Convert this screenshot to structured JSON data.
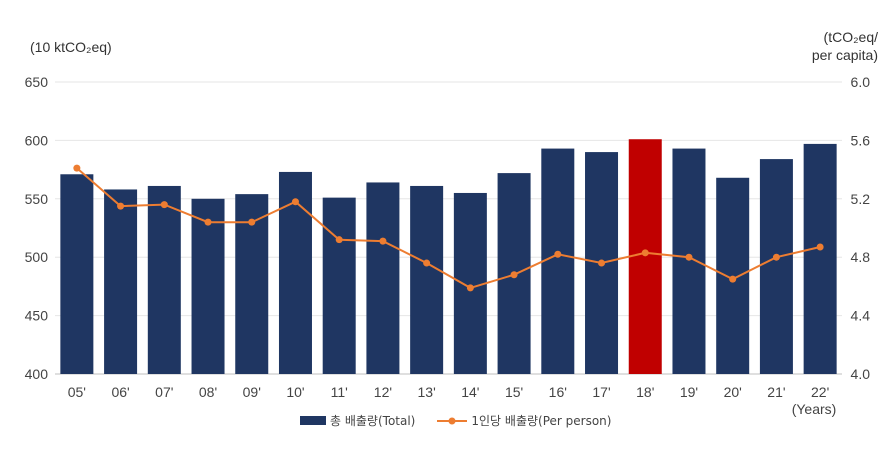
{
  "chart_data": {
    "type": "bar",
    "left_axis_unit": "(10 ktCO₂eq)",
    "right_axis_unit_line1": "(tCO₂eq/",
    "right_axis_unit_line2": "per capita)",
    "x_unit": "(Years)",
    "categories": [
      "05'",
      "06'",
      "07'",
      "08'",
      "09'",
      "10'",
      "11'",
      "12'",
      "13'",
      "14'",
      "15'",
      "16'",
      "17'",
      "18'",
      "19'",
      "20'",
      "21'",
      "22'"
    ],
    "series": [
      {
        "name": "총 배출량(Total)",
        "type": "bar",
        "axis": "left",
        "values": [
          571,
          558,
          561,
          550,
          554,
          573,
          551,
          564,
          561,
          555,
          572,
          593,
          590,
          601,
          593,
          568,
          584,
          597
        ],
        "highlight_index": 13
      },
      {
        "name": "1인당 배출량(Per person)",
        "type": "line",
        "axis": "right",
        "values": [
          5.41,
          5.15,
          5.16,
          5.04,
          5.04,
          5.18,
          4.92,
          4.91,
          4.76,
          4.59,
          4.68,
          4.82,
          4.76,
          4.83,
          4.8,
          4.65,
          4.8,
          4.87
        ]
      }
    ],
    "ylim_left": [
      400,
      650
    ],
    "yticks_left": [
      400,
      450,
      500,
      550,
      600,
      650
    ],
    "ylim_right": [
      4.0,
      6.0
    ],
    "yticks_right": [
      "4.0",
      "4.4",
      "4.8",
      "5.2",
      "5.6",
      "6.0"
    ],
    "grid": true,
    "legend_position": "bottom",
    "colors": {
      "bar": "#1f3662",
      "highlight": "#c00000",
      "line": "#ed7d31",
      "grid": "#e6e6e6"
    }
  }
}
